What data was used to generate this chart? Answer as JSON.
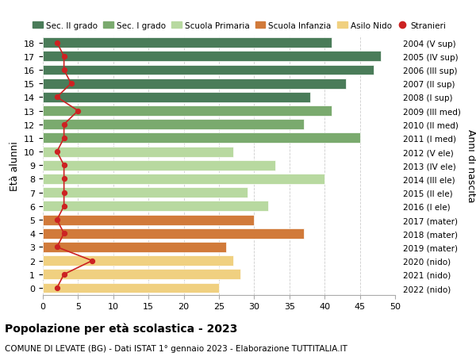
{
  "ages": [
    0,
    1,
    2,
    3,
    4,
    5,
    6,
    7,
    8,
    9,
    10,
    11,
    12,
    13,
    14,
    15,
    16,
    17,
    18
  ],
  "years": [
    "2022 (nido)",
    "2021 (nido)",
    "2020 (nido)",
    "2019 (mater)",
    "2018 (mater)",
    "2017 (mater)",
    "2016 (I ele)",
    "2015 (II ele)",
    "2014 (III ele)",
    "2013 (IV ele)",
    "2012 (V ele)",
    "2011 (I med)",
    "2010 (II med)",
    "2009 (III med)",
    "2008 (I sup)",
    "2007 (II sup)",
    "2006 (III sup)",
    "2005 (IV sup)",
    "2004 (V sup)"
  ],
  "bar_values": [
    25,
    28,
    27,
    26,
    37,
    30,
    32,
    29,
    40,
    33,
    27,
    45,
    37,
    41,
    38,
    43,
    47,
    48,
    41
  ],
  "bar_colors": [
    "#f0d080",
    "#f0d080",
    "#f0d080",
    "#d17a3a",
    "#d17a3a",
    "#d17a3a",
    "#b8d9a0",
    "#b8d9a0",
    "#b8d9a0",
    "#b8d9a0",
    "#b8d9a0",
    "#7aaa6e",
    "#7aaa6e",
    "#7aaa6e",
    "#4a7c59",
    "#4a7c59",
    "#4a7c59",
    "#4a7c59",
    "#4a7c59"
  ],
  "stranieri_values": [
    2,
    3,
    7,
    2,
    3,
    2,
    3,
    3,
    3,
    3,
    2,
    3,
    3,
    5,
    2,
    4,
    3,
    3,
    2
  ],
  "legend_labels": [
    "Sec. II grado",
    "Sec. I grado",
    "Scuola Primaria",
    "Scuola Infanzia",
    "Asilo Nido",
    "Stranieri"
  ],
  "legend_colors": [
    "#4a7c59",
    "#7aaa6e",
    "#b8d9a0",
    "#d17a3a",
    "#f0d080",
    "#cc2222"
  ],
  "title": "Popolazione per età scolastica - 2023",
  "subtitle": "COMUNE DI LEVATE (BG) - Dati ISTAT 1° gennaio 2023 - Elaborazione TUTTITALIA.IT",
  "xlabel_left": "Età alunni",
  "xlabel_right": "Anni di nascita",
  "xlim": [
    0,
    50
  ],
  "xticks": [
    0,
    5,
    10,
    15,
    20,
    25,
    30,
    35,
    40,
    45,
    50
  ],
  "background_color": "#ffffff",
  "grid_color": "#cccccc"
}
